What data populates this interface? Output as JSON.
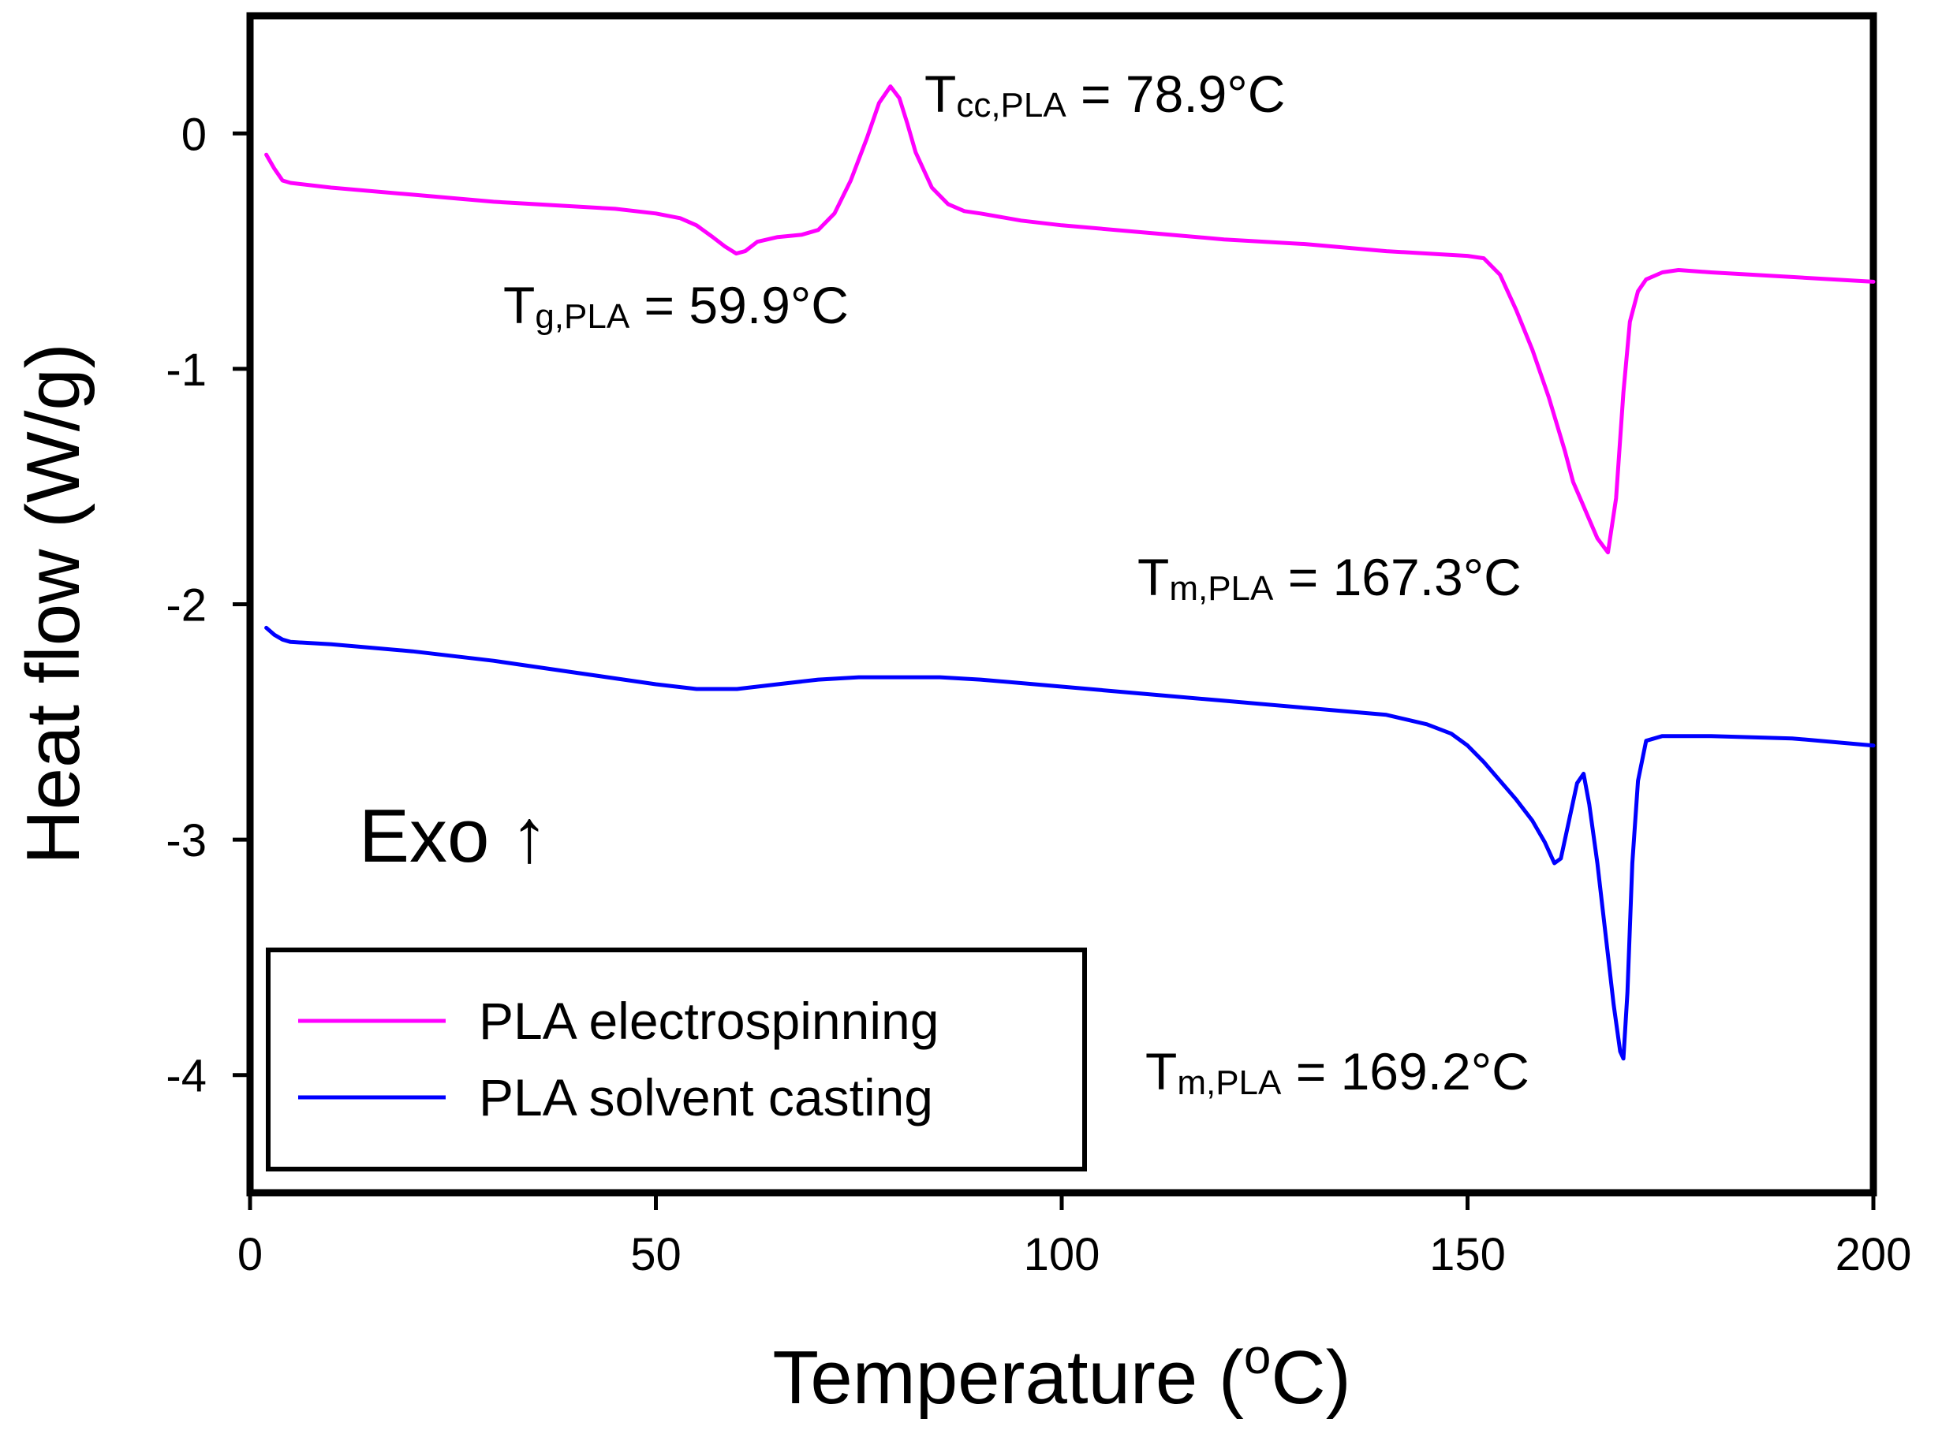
{
  "chart_data": {
    "type": "line",
    "title": "",
    "xlabel": "Temperature (",
    "xlabel_sup": "o",
    "xlabel_end": "C)",
    "ylabel": "Heat flow (W/g)",
    "xlim": [
      0,
      200
    ],
    "ylim": [
      -4.5,
      0.5
    ],
    "xticks": [
      0,
      50,
      100,
      150,
      200
    ],
    "xtick_labels": [
      "0",
      "50",
      "100",
      "150",
      "200"
    ],
    "yticks": [
      0,
      -1,
      -2,
      -3,
      -4
    ],
    "ytick_labels": [
      "0",
      "-1",
      "-2",
      "-3",
      "-4"
    ],
    "grid": false,
    "legend_position": "bottom-left",
    "exo_label": "Exo ↑",
    "series": [
      {
        "name": "PLA electrospinning",
        "color": "#ff00ff",
        "x": [
          2,
          3,
          4,
          5,
          10,
          20,
          30,
          40,
          45,
          50,
          53,
          55,
          57,
          58.5,
          59.9,
          61,
          62.5,
          65,
          68,
          70,
          72,
          74,
          76,
          77.5,
          78.9,
          80,
          81,
          82,
          84,
          86,
          88,
          90,
          95,
          100,
          110,
          120,
          130,
          140,
          150,
          152,
          154,
          156,
          158,
          160,
          162,
          163,
          164,
          165,
          166,
          167.3,
          168.3,
          169.2,
          170,
          171,
          172,
          174,
          176,
          180,
          190,
          200
        ],
        "y": [
          -0.09,
          -0.15,
          -0.2,
          -0.21,
          -0.23,
          -0.26,
          -0.29,
          -0.31,
          -0.32,
          -0.34,
          -0.36,
          -0.39,
          -0.44,
          -0.48,
          -0.51,
          -0.5,
          -0.46,
          -0.44,
          -0.43,
          -0.41,
          -0.34,
          -0.2,
          -0.02,
          0.13,
          0.2,
          0.15,
          0.04,
          -0.08,
          -0.23,
          -0.3,
          -0.33,
          -0.34,
          -0.37,
          -0.39,
          -0.42,
          -0.45,
          -0.47,
          -0.5,
          -0.52,
          -0.53,
          -0.6,
          -0.75,
          -0.92,
          -1.12,
          -1.35,
          -1.48,
          -1.56,
          -1.64,
          -1.72,
          -1.78,
          -1.55,
          -1.1,
          -0.8,
          -0.67,
          -0.62,
          -0.59,
          -0.58,
          -0.59,
          -0.61,
          -0.63
        ]
      },
      {
        "name": "PLA solvent casting",
        "color": "#0000ff",
        "x": [
          2,
          3,
          4,
          5,
          10,
          20,
          30,
          40,
          50,
          55,
          60,
          65,
          70,
          75,
          80,
          85,
          90,
          100,
          110,
          120,
          130,
          140,
          145,
          148,
          150,
          152,
          154,
          156,
          158,
          159.5,
          160.7,
          161.5,
          162.5,
          163.5,
          164.3,
          165,
          166,
          167,
          168,
          168.8,
          169.2,
          169.7,
          170.3,
          171,
          172,
          174,
          176,
          180,
          190,
          200
        ],
        "y": [
          -2.1,
          -2.13,
          -2.15,
          -2.16,
          -2.17,
          -2.2,
          -2.24,
          -2.29,
          -2.34,
          -2.36,
          -2.36,
          -2.34,
          -2.32,
          -2.31,
          -2.31,
          -2.31,
          -2.32,
          -2.35,
          -2.38,
          -2.41,
          -2.44,
          -2.47,
          -2.51,
          -2.55,
          -2.6,
          -2.67,
          -2.75,
          -2.83,
          -2.92,
          -3.01,
          -3.1,
          -3.08,
          -2.92,
          -2.76,
          -2.72,
          -2.85,
          -3.1,
          -3.4,
          -3.7,
          -3.9,
          -3.93,
          -3.65,
          -3.1,
          -2.75,
          -2.58,
          -2.56,
          -2.56,
          -2.56,
          -2.57,
          -2.6
        ]
      }
    ],
    "annotations": [
      {
        "id": "tcc",
        "text_main": "T",
        "text_sub": "cc,PLA",
        "text_rest": " = 78.9°C"
      },
      {
        "id": "tg",
        "text_main": "T",
        "text_sub": "g,PLA",
        "text_rest": " = 59.9°C"
      },
      {
        "id": "tm1",
        "text_main": "T",
        "text_sub": "m,PLA",
        "text_rest": " = 167.3°C"
      },
      {
        "id": "tm2",
        "text_main": "T",
        "text_sub": "m,PLA",
        "text_rest": " = 169.2°C"
      }
    ]
  }
}
